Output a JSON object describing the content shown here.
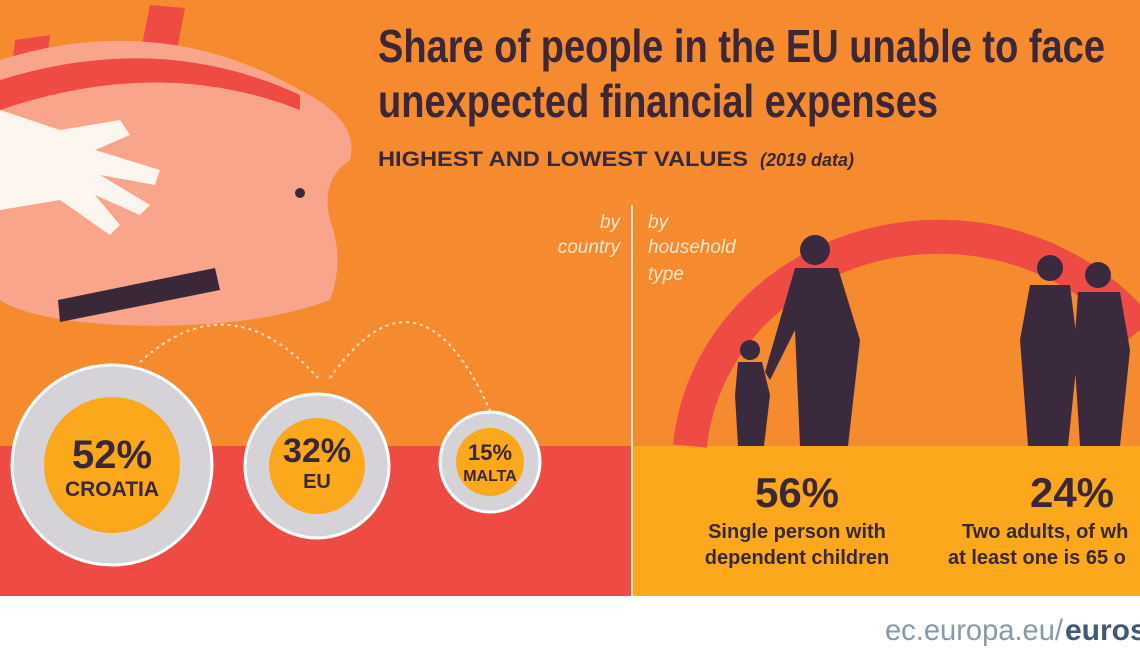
{
  "header": {
    "title_lines": [
      "Share of people in the EU unable to face",
      "unexpected financial expenses"
    ],
    "subtitle": "HIGHEST AND LOWEST VALUES",
    "note": "(2019 data)"
  },
  "by_country": {
    "label_lines": [
      "by",
      "country"
    ],
    "coins": [
      {
        "value": "52%",
        "label": "CROATIA"
      },
      {
        "value": "32%",
        "label": "EU"
      },
      {
        "value": "15%",
        "label": "MALTA"
      }
    ]
  },
  "by_household": {
    "label_lines": [
      "by",
      "household",
      "type"
    ],
    "items": [
      {
        "value": "56%",
        "label_lines": [
          "Single person with",
          "dependent children"
        ]
      },
      {
        "value": "24%",
        "label_lines": [
          "Two adults,  of wh",
          "at least one is 65 o"
        ]
      }
    ]
  },
  "footer": {
    "site": "ec.europa.eu/",
    "brand": "euros"
  }
}
